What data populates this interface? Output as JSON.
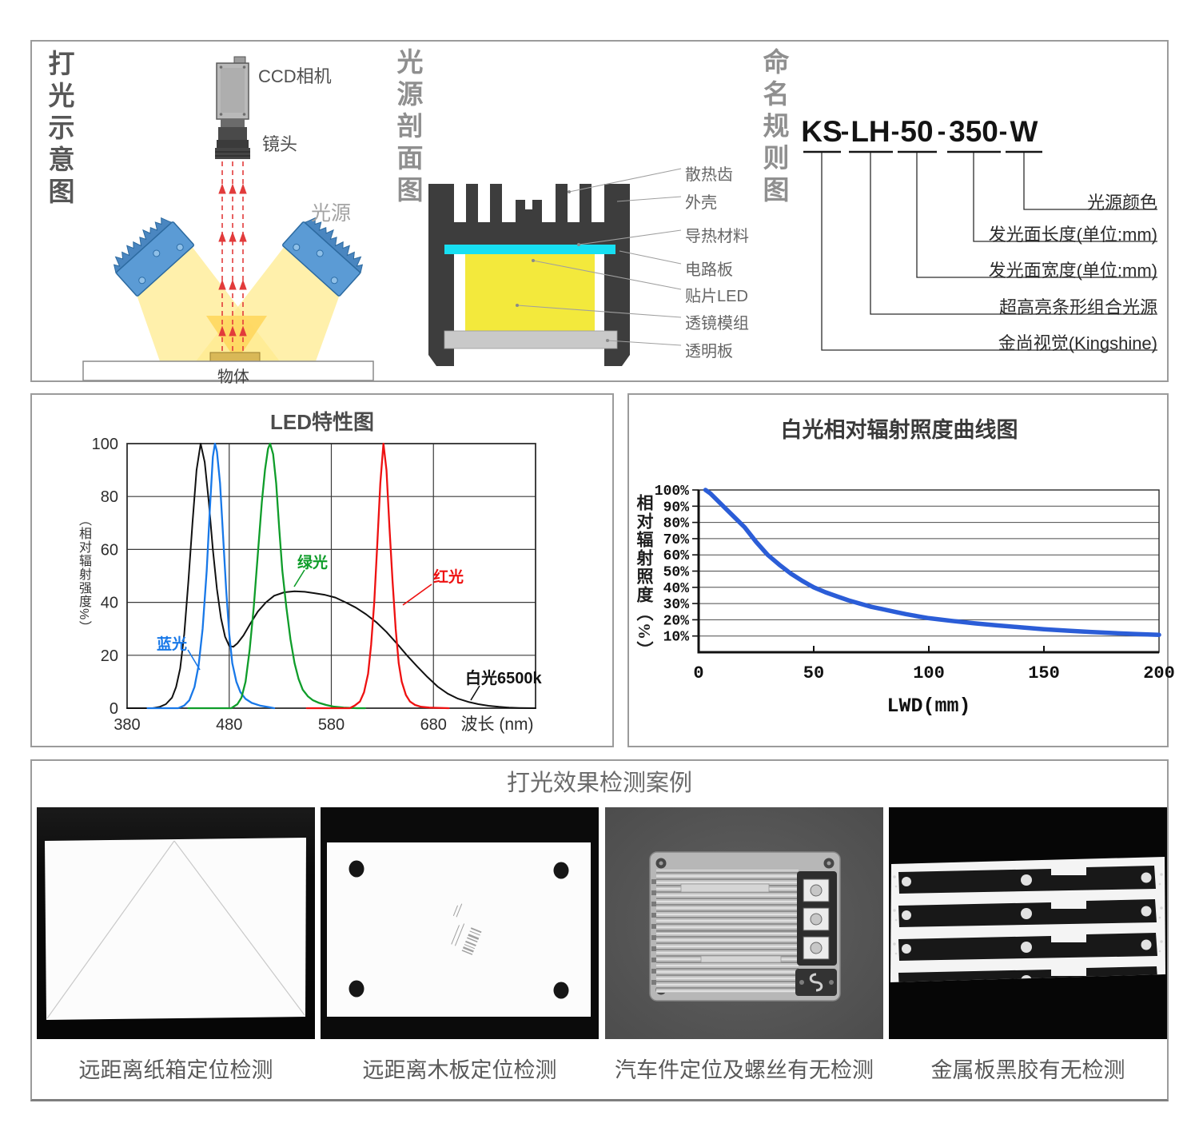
{
  "panels": {
    "schematic": {
      "title": "打光示意图",
      "camera_label": "CCD相机",
      "lens_label": "镜头",
      "light_label": "光源",
      "object_label": "物体"
    },
    "cross_section": {
      "title": "光源剖面图",
      "labels": [
        "散热齿",
        "外壳",
        "导热材料",
        "电路板",
        "贴片LED",
        "透镜模组",
        "透明板"
      ]
    },
    "naming": {
      "title": "命名规则图",
      "model_segments": [
        "KS",
        "LH",
        "50",
        "350",
        "W"
      ],
      "separator": "-",
      "labels": [
        "光源颜色",
        "发光面长度(单位:mm)",
        "发光面宽度(单位:mm)",
        "超高亮条形组合光源",
        "金尚视觉(Kingshine)"
      ]
    }
  },
  "colors": {
    "circuit_board": "#17dff2",
    "smd_led": "#ee1111",
    "lens_module": "#f3e93c",
    "clear_plate": "#c9c9c9",
    "housing": "#3d3d3d",
    "light_fixture": "#5b9bd5",
    "beam": "#ffeb8f",
    "beam_overlap": "#ffd75e",
    "arrow_red": "#e23b3b"
  },
  "chart_data": [
    {
      "id": "led_spectrum",
      "type": "line",
      "title": "LED特性图",
      "xlabel": "波长 (nm)",
      "ylabel": "（相对辐射强度%）",
      "xlim": [
        380,
        780
      ],
      "ylim": [
        0,
        100
      ],
      "xticks": [
        380,
        480,
        580,
        680
      ],
      "yticks": [
        0,
        20,
        40,
        60,
        80,
        100
      ],
      "grid": true,
      "series": [
        {
          "name": "白光6500k",
          "color": "#111111",
          "points": [
            [
              380,
              0
            ],
            [
              405,
              0
            ],
            [
              412,
              0.5
            ],
            [
              418,
              1.5
            ],
            [
              424,
              4
            ],
            [
              428,
              8
            ],
            [
              432,
              15
            ],
            [
              436,
              28
            ],
            [
              440,
              48
            ],
            [
              444,
              70
            ],
            [
              448,
              90
            ],
            [
              452,
              100
            ],
            [
              456,
              93
            ],
            [
              460,
              78
            ],
            [
              464,
              60
            ],
            [
              468,
              45
            ],
            [
              472,
              34
            ],
            [
              476,
              27
            ],
            [
              480,
              23.5
            ],
            [
              484,
              23.2
            ],
            [
              488,
              24.5
            ],
            [
              494,
              27.5
            ],
            [
              500,
              31.5
            ],
            [
              508,
              36.5
            ],
            [
              516,
              40
            ],
            [
              524,
              42.5
            ],
            [
              534,
              43.8
            ],
            [
              544,
              44.2
            ],
            [
              554,
              44
            ],
            [
              564,
              43.4
            ],
            [
              574,
              42.8
            ],
            [
              584,
              41.8
            ],
            [
              594,
              40
            ],
            [
              604,
              38
            ],
            [
              614,
              35.5
            ],
            [
              624,
              32.5
            ],
            [
              634,
              28.8
            ],
            [
              644,
              24.5
            ],
            [
              654,
              20
            ],
            [
              664,
              15.8
            ],
            [
              674,
              11.8
            ],
            [
              684,
              8.2
            ],
            [
              694,
              5.5
            ],
            [
              704,
              3.6
            ],
            [
              714,
              2.4
            ],
            [
              724,
              1.5
            ],
            [
              734,
              0.9
            ],
            [
              744,
              0.5
            ],
            [
              754,
              0.2
            ],
            [
              764,
              0.1
            ],
            [
              780,
              0
            ]
          ]
        },
        {
          "name": "蓝光",
          "color": "#1878e8",
          "points": [
            [
              400,
              0
            ],
            [
              430,
              0
            ],
            [
              436,
              1
            ],
            [
              441,
              3
            ],
            [
              446,
              8
            ],
            [
              450,
              16
            ],
            [
              454,
              30
            ],
            [
              458,
              52
            ],
            [
              461,
              75
            ],
            [
              464,
              95
            ],
            [
              466,
              100
            ],
            [
              468,
              97
            ],
            [
              471,
              85
            ],
            [
              474,
              65
            ],
            [
              477,
              45
            ],
            [
              480,
              28
            ],
            [
              483,
              17
            ],
            [
              487,
              10
            ],
            [
              491,
              6
            ],
            [
              496,
              3.5
            ],
            [
              502,
              2
            ],
            [
              510,
              1
            ],
            [
              520,
              0.3
            ],
            [
              524,
              0
            ]
          ]
        },
        {
          "name": "绿光",
          "color": "#0f9d2a",
          "points": [
            [
              440,
              0
            ],
            [
              482,
              0
            ],
            [
              488,
              1.5
            ],
            [
              492,
              4
            ],
            [
              496,
              10
            ],
            [
              500,
              22
            ],
            [
              504,
              38
            ],
            [
              508,
              58
            ],
            [
              512,
              78
            ],
            [
              515,
              90
            ],
            [
              518,
              98
            ],
            [
              520,
              100
            ],
            [
              523,
              96
            ],
            [
              526,
              85
            ],
            [
              529,
              68
            ],
            [
              532,
              52
            ],
            [
              536,
              38
            ],
            [
              540,
              26
            ],
            [
              544,
              17
            ],
            [
              548,
              11
            ],
            [
              552,
              7
            ],
            [
              557,
              4.5
            ],
            [
              562,
              3
            ],
            [
              568,
              2
            ],
            [
              575,
              1.2
            ],
            [
              582,
              0.6
            ],
            [
              592,
              0.2
            ],
            [
              605,
              0
            ],
            [
              613,
              0
            ]
          ]
        },
        {
          "name": "红光",
          "color": "#ee1111",
          "points": [
            [
              556,
              0
            ],
            [
              598,
              0
            ],
            [
              603,
              1
            ],
            [
              608,
              2.5
            ],
            [
              612,
              6
            ],
            [
              616,
              13
            ],
            [
              619,
              24
            ],
            [
              622,
              40
            ],
            [
              625,
              62
            ],
            [
              628,
              85
            ],
            [
              631,
              100
            ],
            [
              634,
              90
            ],
            [
              637,
              68
            ],
            [
              640,
              48
            ],
            [
              643,
              30
            ],
            [
              646,
              17
            ],
            [
              649,
              10
            ],
            [
              653,
              5
            ],
            [
              657,
              2.5
            ],
            [
              662,
              1.2
            ],
            [
              668,
              0.5
            ],
            [
              676,
              0.2
            ],
            [
              695,
              0
            ]
          ]
        }
      ],
      "annotations": [
        {
          "text": "蓝光",
          "color": "#1878e8"
        },
        {
          "text": "绿光",
          "color": "#0f9d2a"
        },
        {
          "text": "红光",
          "color": "#ee1111"
        },
        {
          "text": "白光6500k",
          "color": "#111111"
        }
      ]
    },
    {
      "id": "white_irradiance",
      "type": "line",
      "title": "白光相对辐射照度曲线图",
      "xlabel": "LWD(mm)",
      "ylabel": "相对辐射照度（%）",
      "xlim": [
        0,
        200
      ],
      "ylim": [
        0,
        100
      ],
      "xticks": [
        0,
        50,
        100,
        150,
        200
      ],
      "ytick_labels": [
        "10%",
        "20%",
        "30%",
        "40%",
        "50%",
        "60%",
        "70%",
        "80%",
        "90%",
        "100%"
      ],
      "grid": true,
      "series": [
        {
          "name": "白光相对辐射照度",
          "color": "#2b5dd7",
          "points": [
            [
              3,
              100
            ],
            [
              5,
              98
            ],
            [
              10,
              91
            ],
            [
              15,
              84
            ],
            [
              20,
              77
            ],
            [
              25,
              68
            ],
            [
              30,
              60
            ],
            [
              35,
              54
            ],
            [
              40,
              48.5
            ],
            [
              45,
              44
            ],
            [
              50,
              40
            ],
            [
              55,
              37
            ],
            [
              60,
              34.5
            ],
            [
              65,
              32
            ],
            [
              70,
              30
            ],
            [
              75,
              28
            ],
            [
              80,
              26.5
            ],
            [
              85,
              25
            ],
            [
              90,
              23.5
            ],
            [
              95,
              22.2
            ],
            [
              100,
              21
            ],
            [
              110,
              19.3
            ],
            [
              120,
              17.8
            ],
            [
              130,
              16.5
            ],
            [
              140,
              15.3
            ],
            [
              150,
              14.2
            ],
            [
              160,
              13.3
            ],
            [
              170,
              12.5
            ],
            [
              180,
              11.8
            ],
            [
              190,
              11.2
            ],
            [
              200,
              10.7
            ]
          ]
        }
      ]
    }
  ],
  "cases": {
    "title": "打光效果检测案例",
    "items": [
      {
        "caption": "远距离纸箱定位检测"
      },
      {
        "caption": "远距离木板定位检测"
      },
      {
        "caption": "汽车件定位及螺丝有无检测"
      },
      {
        "caption": "金属板黑胶有无检测"
      }
    ]
  }
}
